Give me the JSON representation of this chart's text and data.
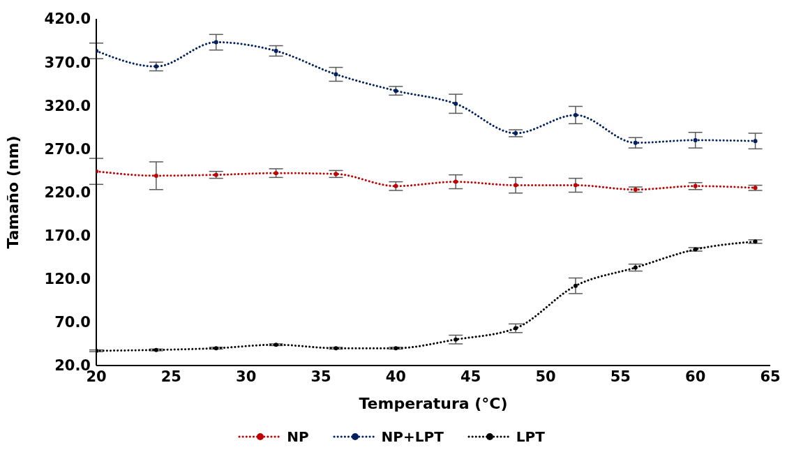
{
  "chart_data": {
    "type": "line",
    "xlabel": "Temperatura (°C)",
    "ylabel": "Tamaño (nm)",
    "x": [
      20,
      24,
      28,
      32,
      36,
      40,
      44,
      48,
      52,
      56,
      60,
      64
    ],
    "series": [
      {
        "name": "NP",
        "color": "#c00000",
        "values": [
          244,
          239,
          240,
          242,
          241,
          227,
          232,
          228,
          228,
          223,
          227,
          225
        ],
        "errors": [
          15,
          16,
          4,
          5,
          4,
          5,
          8,
          9,
          8,
          3,
          4,
          3
        ]
      },
      {
        "name": "NP+LPT",
        "color": "#002060",
        "values": [
          383,
          365,
          393,
          383,
          356,
          337,
          322,
          288,
          309,
          277,
          280,
          279
        ],
        "errors": [
          9,
          5,
          9,
          6,
          8,
          5,
          11,
          4,
          10,
          6,
          9,
          9
        ]
      },
      {
        "name": "LPT",
        "color": "#000000",
        "values": [
          37,
          38,
          40,
          44,
          40,
          40,
          50,
          63,
          112,
          133,
          154,
          163
        ],
        "errors": [
          1,
          1,
          1,
          1,
          1,
          1,
          5,
          5,
          9,
          4,
          2,
          2
        ]
      }
    ],
    "xlim": [
      20,
      65
    ],
    "xticks": [
      20,
      25,
      30,
      35,
      40,
      45,
      50,
      55,
      60,
      65
    ],
    "ylim": [
      20,
      420
    ],
    "yticks": [
      {
        "value": 20,
        "label": "20.0"
      },
      {
        "value": 70,
        "label": "70.0"
      },
      {
        "value": 120,
        "label": "120.0"
      },
      {
        "value": 170,
        "label": "170.0"
      },
      {
        "value": 220,
        "label": "220.0"
      },
      {
        "value": 270,
        "label": "270.0"
      },
      {
        "value": 320,
        "label": "320.0"
      },
      {
        "value": 370,
        "label": "370.0"
      },
      {
        "value": 420,
        "label": "420.0"
      }
    ],
    "grid": false,
    "legend": "bottom",
    "marker": "circle",
    "line_style": "dotted"
  }
}
